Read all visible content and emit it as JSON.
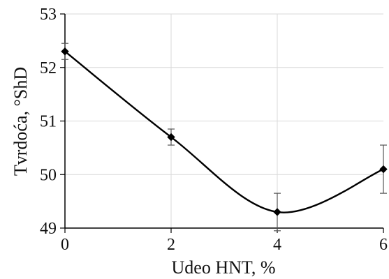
{
  "chart_data": {
    "type": "line",
    "title": "",
    "xlabel": "Udeo HNT, %",
    "ylabel": "Tvrdoća, °ShD",
    "x": [
      0,
      2,
      4,
      6
    ],
    "series": [
      {
        "values": [
          52.3,
          50.7,
          49.3,
          50.1
        ],
        "errors": [
          0.15,
          0.15,
          0.35,
          0.45
        ]
      }
    ],
    "xlim": [
      0,
      6
    ],
    "ylim": [
      49,
      53
    ],
    "xticks": [
      "0",
      "2",
      "4",
      "6"
    ],
    "yticks": [
      "49",
      "50",
      "51",
      "52",
      "53"
    ],
    "grid": true,
    "line_style": "smooth",
    "marker": "diamond",
    "colors": {
      "line": "#000000",
      "grid": "#d9d9d9",
      "axis": "#000000"
    }
  }
}
